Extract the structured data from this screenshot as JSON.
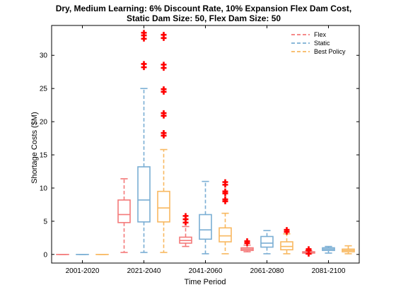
{
  "chart_data": {
    "type": "box",
    "title": [
      "Dry, Medium Learning: 6% Discount Rate, 10% Expansion Flex Dam Cost,",
      "Static Dam Size: 50, Flex Dam Size: 50"
    ],
    "xlabel": "Time Period",
    "ylabel": "Shortage Costs ($M)",
    "ylim": [
      -1.3,
      34.5
    ],
    "yticks": [
      0,
      5,
      10,
      15,
      20,
      25,
      30
    ],
    "categories": [
      "2001-2020",
      "2021-2040",
      "2041-2060",
      "2061-2080",
      "2081-2100"
    ],
    "legend_position": "top-right",
    "outlier_color": "#ff0000",
    "series": [
      {
        "name": "Flex",
        "color": "#f47a7a",
        "boxes": [
          {
            "whisker_low": 0,
            "q1": 0,
            "median": 0,
            "q3": 0,
            "whisker_high": 0,
            "outliers": []
          },
          {
            "whisker_low": 0.3,
            "q1": 4.8,
            "median": 6.0,
            "q3": 8.2,
            "whisker_high": 11.4,
            "outliers": []
          },
          {
            "whisker_low": 1.2,
            "q1": 1.7,
            "median": 2.1,
            "q3": 2.6,
            "whisker_high": 4.2,
            "outliers": [
              4.8,
              5.3,
              5.8
            ]
          },
          {
            "whisker_low": 0.4,
            "q1": 0.6,
            "median": 0.8,
            "q3": 1.0,
            "whisker_high": 1.4,
            "outliers": [
              1.7,
              2.0
            ]
          },
          {
            "whisker_low": 0.1,
            "q1": 0.2,
            "median": 0.3,
            "q3": 0.4,
            "whisker_high": 0.6,
            "outliers": [
              0.1,
              0.6,
              0.8
            ]
          }
        ]
      },
      {
        "name": "Static",
        "color": "#7aaed4",
        "boxes": [
          {
            "whisker_low": 0,
            "q1": 0,
            "median": 0,
            "q3": 0,
            "whisker_high": 0,
            "outliers": []
          },
          {
            "whisker_low": 0.3,
            "q1": 4.9,
            "median": 8.2,
            "q3": 13.2,
            "whisker_high": 25.0,
            "outliers": [
              28.2,
              28.7,
              32.5,
              33.0,
              33.4
            ]
          },
          {
            "whisker_low": 0.1,
            "q1": 2.3,
            "median": 3.7,
            "q3": 6.0,
            "whisker_high": 11.0,
            "outliers": []
          },
          {
            "whisker_low": 0.1,
            "q1": 1.1,
            "median": 1.7,
            "q3": 2.7,
            "whisker_high": 3.6,
            "outliers": []
          },
          {
            "whisker_low": 0.2,
            "q1": 0.6,
            "median": 0.8,
            "q3": 1.0,
            "whisker_high": 1.2,
            "outliers": []
          }
        ]
      },
      {
        "name": "Best Policy",
        "color": "#f8b860",
        "boxes": [
          {
            "whisker_low": 0,
            "q1": 0,
            "median": 0,
            "q3": 0,
            "whisker_high": 0,
            "outliers": []
          },
          {
            "whisker_low": 0.3,
            "q1": 4.9,
            "median": 7.0,
            "q3": 9.5,
            "whisker_high": 15.8,
            "outliers": [
              17.9,
              18.3,
              20.9,
              21.3,
              24.5,
              24.9,
              28.1,
              28.6,
              32.6,
              33.1
            ]
          },
          {
            "whisker_low": 0.1,
            "q1": 1.9,
            "median": 2.8,
            "q3": 4.0,
            "whisker_high": 6.2,
            "outliers": [
              8.0,
              8.3,
              9.2,
              9.5,
              10.5,
              10.9
            ]
          },
          {
            "whisker_low": 0.1,
            "q1": 0.7,
            "median": 1.2,
            "q3": 1.9,
            "whisker_high": 3.1,
            "outliers": [
              3.4,
              3.7
            ]
          },
          {
            "whisker_low": 0.1,
            "q1": 0.4,
            "median": 0.6,
            "q3": 0.8,
            "whisker_high": 1.3,
            "outliers": []
          }
        ]
      }
    ]
  }
}
